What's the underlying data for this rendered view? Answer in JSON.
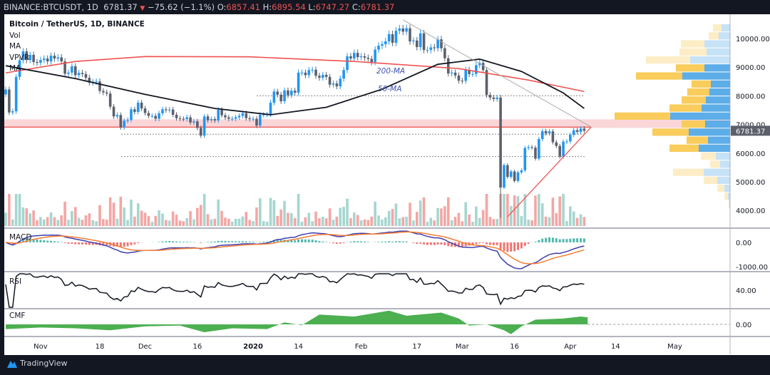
{
  "header": {
    "symbol": "BINANCE:BTCUSDT, 1D",
    "last": "6781.37",
    "arrow": "▼",
    "change": "−75.62 (−1.1%)",
    "o_label": "O:",
    "o": "6857.41",
    "h_label": "H:",
    "h": "6895.54",
    "l_label": "L:",
    "l": "6747.27",
    "c_label": "C:",
    "c": "6781.37"
  },
  "legend": {
    "title": "Bitcoin / TetherUS, 1D, BINANCE",
    "items": [
      "Vol",
      "MA",
      "VPVR",
      "MA"
    ]
  },
  "panes": {
    "macd": "MACD",
    "rsi": "RSI",
    "cmf": "CMF"
  },
  "annotations": {
    "ma200": "200-MA",
    "ma50": "50-MA"
  },
  "footer": {
    "brand": "TradingView"
  },
  "colors": {
    "up": "#2196f3",
    "down": "#5d606b",
    "ma200": "#ef5350",
    "ma50": "#131722",
    "band": "#f8c8cc",
    "vol_up": "#a5d6d0",
    "vol_down": "#f4a6a4",
    "vp_up": "#5dade8",
    "vp_down": "#f9cc5c",
    "cmf": "#4caf50"
  },
  "chart_data": {
    "type": "candlestick",
    "start_date": "2019-10-22",
    "price_axis": {
      "ticks": [
        "10000.00",
        "9000.00",
        "8000.00",
        "7000.00",
        "6000.00",
        "5000.00",
        "4000.00"
      ],
      "values": [
        10000,
        9000,
        8000,
        7000,
        6000,
        5000,
        4000
      ],
      "last_label": "6781.37",
      "last": 6781.37
    },
    "time_axis": [
      {
        "label": "Nov",
        "day": 10
      },
      {
        "label": "18",
        "day": 27
      },
      {
        "label": "Dec",
        "day": 40
      },
      {
        "label": "16",
        "day": 55
      },
      {
        "label": "2020",
        "day": 71,
        "bold": true
      },
      {
        "label": "14",
        "day": 84
      },
      {
        "label": "Feb",
        "day": 102
      },
      {
        "label": "17",
        "day": 118
      },
      {
        "label": "Mar",
        "day": 131
      },
      {
        "label": "16",
        "day": 146
      },
      {
        "label": "Apr",
        "day": 162
      },
      {
        "label": "14",
        "day": 175
      },
      {
        "label": "May",
        "day": 192
      }
    ],
    "first_open": 8050,
    "closes": [
      8220,
      7420,
      7460,
      8660,
      9240,
      9550,
      9250,
      9430,
      9180,
      9150,
      9250,
      9300,
      9200,
      9400,
      9300,
      9340,
      9200,
      8770,
      8810,
      9030,
      8720,
      8800,
      8760,
      8630,
      8460,
      8490,
      8500,
      8170,
      8120,
      8080,
      7620,
      7280,
      7330,
      6900,
      7130,
      7160,
      7530,
      7440,
      7760,
      7560,
      7400,
      7300,
      7300,
      7200,
      7390,
      7530,
      7500,
      7520,
      7340,
      7220,
      7200,
      7190,
      7250,
      7070,
      7110,
      6880,
      6610,
      7280,
      7150,
      7190,
      7140,
      7510,
      7320,
      7250,
      7200,
      7200,
      7250,
      7300,
      7390,
      7220,
      7190,
      7200,
      6960,
      7340,
      7350,
      7350,
      7760,
      8150,
      8040,
      7810,
      8190,
      8020,
      8180,
      8110,
      8810,
      8810,
      8720,
      8900,
      8910,
      8700,
      8630,
      8730,
      8660,
      8390,
      8430,
      8330,
      8600,
      8900,
      9380,
      9300,
      9500,
      9350,
      9380,
      9330,
      9290,
      9180,
      9610,
      9750,
      9800,
      9900,
      10150,
      9850,
      10270,
      10350,
      10240,
      10360,
      9900,
      9930,
      9700,
      10180,
      9600,
      9600,
      9690,
      9660,
      9970,
      9660,
      9310,
      8780,
      8810,
      8710,
      8530,
      8520,
      8910,
      8760,
      8760,
      9070,
      9150,
      8900,
      8030,
      7940,
      7890,
      7940,
      4800,
      5580,
      5170,
      5360,
      5030,
      5330,
      5400,
      6180,
      6210,
      6190,
      5810,
      6490,
      6770,
      6690,
      6760,
      6380,
      6250,
      5880,
      6400,
      6410,
      6640,
      6800,
      6740,
      6857.41,
      6781.37
    ],
    "ma200": [
      [
        0,
        8800
      ],
      [
        20,
        9200
      ],
      [
        40,
        9370
      ],
      [
        70,
        9360
      ],
      [
        100,
        9200
      ],
      [
        130,
        8950
      ],
      [
        150,
        8550
      ],
      [
        166,
        8150
      ]
    ],
    "ma50": [
      [
        0,
        9050
      ],
      [
        20,
        8600
      ],
      [
        40,
        8050
      ],
      [
        60,
        7560
      ],
      [
        76,
        7340
      ],
      [
        92,
        7600
      ],
      [
        108,
        8230
      ],
      [
        124,
        9100
      ],
      [
        136,
        9280
      ],
      [
        148,
        8850
      ],
      [
        160,
        8100
      ],
      [
        166,
        7560
      ]
    ],
    "levels": {
      "resistance_band": [
        6880,
        7180
      ],
      "resistance_line": 6910,
      "dotted": [
        8000,
        6660,
        5880
      ]
    },
    "triangle": {
      "apex": [
        168,
        6910
      ],
      "lower_start": [
        144,
        3780
      ],
      "upper_start": [
        114,
        10650
      ]
    },
    "volume_profile": [
      [
        10500,
        12,
        12,
        0
      ],
      [
        10220,
        16,
        14,
        0
      ],
      [
        9940,
        36,
        33,
        0
      ],
      [
        9660,
        33,
        38,
        0
      ],
      [
        9380,
        56,
        62,
        0
      ],
      [
        9100,
        36,
        40,
        1
      ],
      [
        8820,
        67,
        65,
        1
      ],
      [
        8540,
        27,
        27,
        1
      ],
      [
        8260,
        29,
        31,
        1
      ],
      [
        7980,
        34,
        34,
        1
      ],
      [
        7700,
        40,
        45,
        1
      ],
      [
        7420,
        84,
        78,
        1
      ],
      [
        7140,
        35,
        33,
        1
      ],
      [
        6860,
        58,
        51,
        1
      ],
      [
        6580,
        31,
        30,
        1
      ],
      [
        6300,
        44,
        41,
        1
      ],
      [
        6020,
        20,
        21,
        0
      ],
      [
        5740,
        14,
        14,
        0
      ],
      [
        5460,
        37,
        43,
        0
      ],
      [
        5180,
        18,
        19,
        0
      ],
      [
        4900,
        8,
        10,
        0
      ],
      [
        4620,
        3,
        5,
        0
      ],
      [
        4340,
        1,
        1,
        0
      ]
    ],
    "macd_axis": {
      "ticks": [
        "0.00",
        "-1000.00"
      ],
      "values": [
        0,
        -1000
      ]
    },
    "rsi_axis": {
      "ticks": [
        "40.00"
      ],
      "values": [
        40
      ]
    },
    "cmf_axis": {
      "ticks": [
        "0.00"
      ],
      "values": [
        0
      ]
    },
    "cmf": [
      [
        0,
        -0.12
      ],
      [
        10,
        -0.08
      ],
      [
        20,
        -0.1
      ],
      [
        30,
        -0.15
      ],
      [
        40,
        -0.05
      ],
      [
        50,
        -0.03
      ],
      [
        57,
        -0.2
      ],
      [
        65,
        -0.1
      ],
      [
        75,
        -0.12
      ],
      [
        80,
        0.05
      ],
      [
        85,
        -0.02
      ],
      [
        90,
        0.25
      ],
      [
        100,
        0.2
      ],
      [
        110,
        0.35
      ],
      [
        115,
        0.22
      ],
      [
        125,
        0.3
      ],
      [
        130,
        0.15
      ],
      [
        133,
        -0.03
      ],
      [
        138,
        0
      ],
      [
        143,
        -0.15
      ],
      [
        145,
        -0.25
      ],
      [
        148,
        -0.05
      ],
      [
        152,
        0.12
      ],
      [
        160,
        0.15
      ],
      [
        165,
        0.2
      ],
      [
        167,
        0.18
      ]
    ]
  }
}
